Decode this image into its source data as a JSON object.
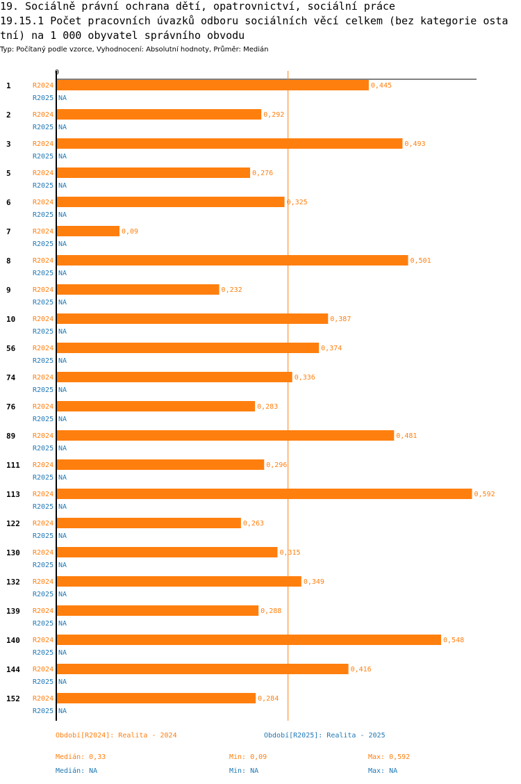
{
  "header": {
    "line1": "19. Sociálně právní ochrana dětí, opatrovnictví, sociální práce",
    "line2": "19.15.1 Počet pracovních úvazků odboru sociálních věcí celkem (bez kategorie osta",
    "line3": "tní) na 1 000 obyvatel správního obvodu",
    "subtitle": "Typ: Počítaný podle vzorce, Vyhodnocení: Absolutní hodnoty, Průměr: Medián"
  },
  "colors": {
    "r2024": "#ff7f0e",
    "r2025": "#1f77b4",
    "median": "#ff7f0e"
  },
  "chart_data": {
    "type": "bar",
    "orientation": "horizontal",
    "axis_zero_label": "0",
    "xlim": [
      0,
      0.6
    ],
    "median": 0.33,
    "categories": [
      "1",
      "2",
      "3",
      "5",
      "6",
      "7",
      "8",
      "9",
      "10",
      "56",
      "74",
      "76",
      "89",
      "111",
      "113",
      "122",
      "130",
      "132",
      "139",
      "140",
      "144",
      "152"
    ],
    "series": [
      {
        "name": "R2024",
        "values": [
          0.445,
          0.292,
          0.493,
          0.276,
          0.325,
          0.09,
          0.501,
          0.232,
          0.387,
          0.374,
          0.336,
          0.283,
          0.481,
          0.296,
          0.592,
          0.263,
          0.315,
          0.349,
          0.288,
          0.548,
          0.416,
          0.284
        ],
        "labels": [
          "0,445",
          "0,292",
          "0,493",
          "0,276",
          "0,325",
          "0,09",
          "0,501",
          "0,232",
          "0,387",
          "0,374",
          "0,336",
          "0,283",
          "0,481",
          "0,296",
          "0,592",
          "0,263",
          "0,315",
          "0,349",
          "0,288",
          "0,548",
          "0,416",
          "0,284"
        ]
      },
      {
        "name": "R2025",
        "values": [
          null,
          null,
          null,
          null,
          null,
          null,
          null,
          null,
          null,
          null,
          null,
          null,
          null,
          null,
          null,
          null,
          null,
          null,
          null,
          null,
          null,
          null
        ],
        "labels": [
          "NA",
          "NA",
          "NA",
          "NA",
          "NA",
          "NA",
          "NA",
          "NA",
          "NA",
          "NA",
          "NA",
          "NA",
          "NA",
          "NA",
          "NA",
          "NA",
          "NA",
          "NA",
          "NA",
          "NA",
          "NA",
          "NA"
        ]
      }
    ]
  },
  "legend": {
    "r2024": "Období[R2024]: Realita - 2024",
    "r2025": "Období[R2025]: Realita - 2025",
    "stats2024": {
      "median": "Medián: 0,33",
      "min": "Min: 0,09",
      "max": "Max: 0,592"
    },
    "stats2025": {
      "median": "Medián: NA",
      "min": "Min: NA",
      "max": "Max: NA"
    }
  }
}
